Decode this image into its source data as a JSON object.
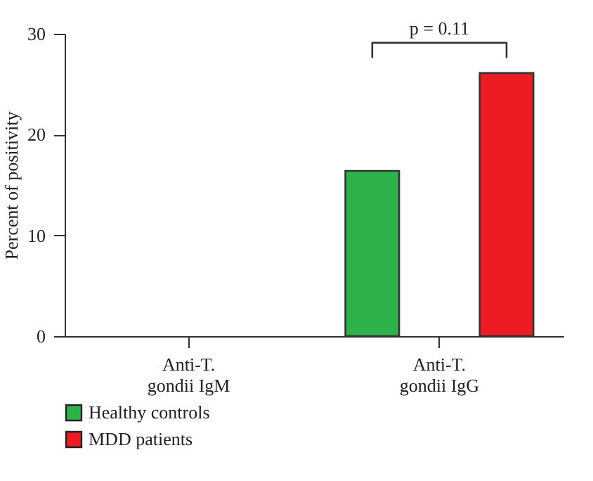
{
  "chart_data": {
    "type": "bar",
    "ylabel": "Percent of positivity",
    "categories": [
      "Anti-T. gondii IgM",
      "Anti-T. gondii IgG"
    ],
    "series": [
      {
        "name": "Healthy controls",
        "color": "#2db34a",
        "values": [
          0,
          16.4
        ]
      },
      {
        "name": "MDD patients",
        "color": "#ed1c24",
        "values": [
          0,
          26.1
        ]
      }
    ],
    "ylim": [
      0,
      30
    ],
    "yticks": [
      0,
      10,
      20,
      30
    ],
    "grid": false,
    "legend": "bottom",
    "annotations": [
      "p = 0.11"
    ]
  }
}
